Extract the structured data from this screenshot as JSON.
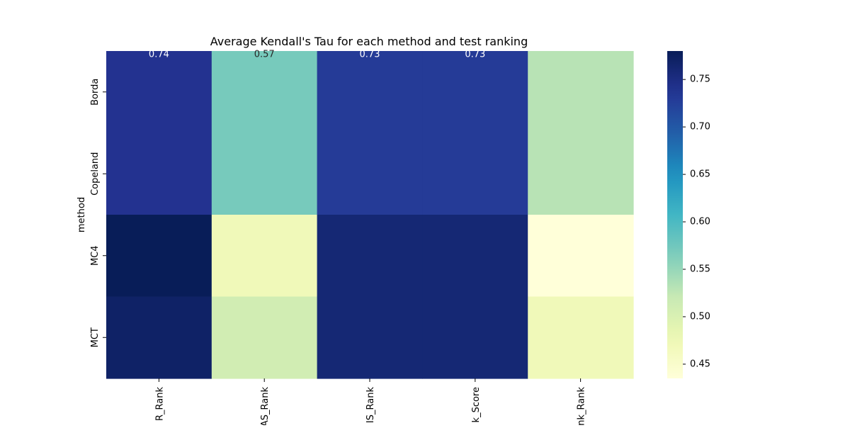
{
  "chart_data": {
    "type": "heatmap",
    "title": "Average Kendall's Tau for each method and test ranking",
    "xlabel": "",
    "ylabel": "method",
    "rows": [
      "Borda",
      "Copeland",
      "MC4",
      "MCT"
    ],
    "columns": [
      "R_Rank",
      "AS_Rank",
      "IS_Rank",
      "k_Score",
      "nk_Rank"
    ],
    "values": [
      [
        0.74,
        0.57,
        0.73,
        0.73,
        0.53
      ],
      [
        0.74,
        0.57,
        0.73,
        0.73,
        0.53
      ],
      [
        0.78,
        0.47,
        0.76,
        0.76,
        0.435
      ],
      [
        0.77,
        0.51,
        0.76,
        0.76,
        0.47
      ]
    ],
    "annotations": [
      {
        "row": 0,
        "col": 0,
        "text": "0.74"
      },
      {
        "row": 0,
        "col": 1,
        "text": "0.57"
      },
      {
        "row": 0,
        "col": 2,
        "text": "0.73"
      },
      {
        "row": 0,
        "col": 3,
        "text": "0.73"
      }
    ],
    "colormap": "YlGnBu",
    "colorbar": {
      "vmin": 0.435,
      "vmax": 0.78,
      "ticks": [
        0.45,
        0.5,
        0.55,
        0.6,
        0.65,
        0.7,
        0.75
      ],
      "tick_labels": [
        "0.45",
        "0.50",
        "0.55",
        "0.60",
        "0.65",
        "0.70",
        "0.75"
      ]
    },
    "grid": false
  }
}
